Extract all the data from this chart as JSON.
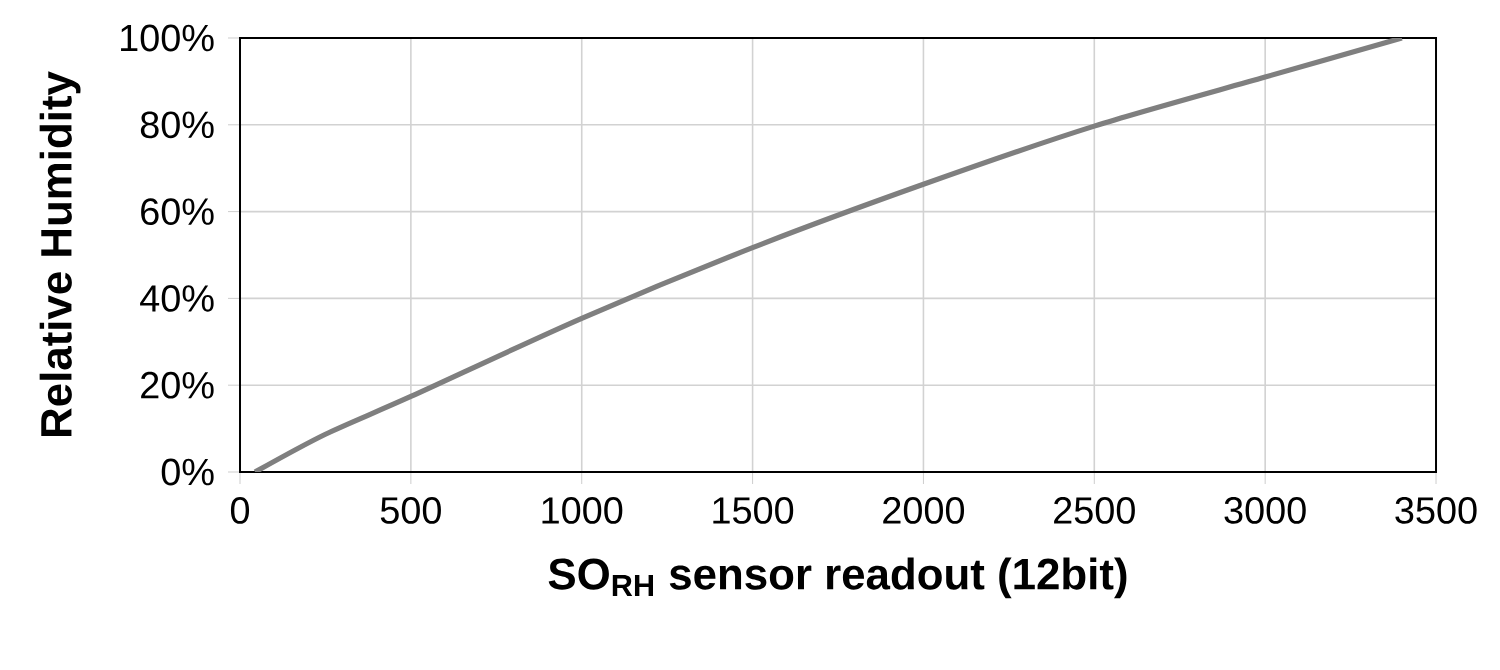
{
  "chart_data": {
    "type": "line",
    "xlabel": "SO$_{RH}$ sensor readout (12bit)",
    "ylabel": "Relative Humidity",
    "x": [
      44,
      250,
      500,
      1000,
      1500,
      2000,
      2500,
      3000,
      3400
    ],
    "series": [
      {
        "color": "#7f7f7f",
        "values": [
          0,
          8.7,
          17.4,
          35.4,
          51.7,
          66.3,
          79.7,
          91,
          100
        ]
      }
    ],
    "xlim": [
      0,
      3500
    ],
    "xticks": [
      0,
      500,
      1000,
      1500,
      2000,
      2500,
      3000,
      3500
    ],
    "ylim": [
      0,
      100
    ],
    "yticks": [
      {
        "value": 0,
        "label": "0%"
      },
      {
        "value": 20,
        "label": "20%"
      },
      {
        "value": 40,
        "label": "40%"
      },
      {
        "value": 60,
        "label": "60%"
      },
      {
        "value": 80,
        "label": "80%"
      },
      {
        "value": 100,
        "label": "100%"
      }
    ],
    "grid": true,
    "marker": "none",
    "line_style": "solid"
  }
}
